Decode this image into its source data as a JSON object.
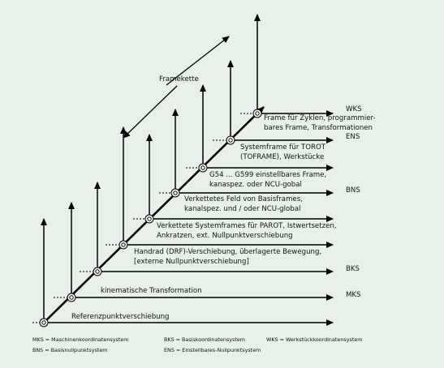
{
  "diagram": {
    "chain_label": "Framekette",
    "axis_labels": [
      "WKS",
      "ENS",
      "BNS",
      "BKS",
      "MKS"
    ],
    "frame_labels": [
      [
        "Referenzpunktverschiebung"
      ],
      [
        "kinematische Transformation"
      ],
      [
        "Handrad (DRF)-Verschiebung, überlagerte Bewegung,",
        "[externe Nullpunktverschiebung]"
      ],
      [
        "Verkettete Systemframes für PAROT, Istwertsetzen,",
        "Ankratzen, ext. Nullpunktverschiebung"
      ],
      [
        "Verkettetes Feld von Basisframes,",
        "kanalspez. und / oder NCU-global"
      ],
      [
        "G54 ... G599 einstellbares Frame,",
        "kanaspez. oder NCU-gobal"
      ],
      [
        "Systemframe für TOROT",
        "(TOFRAME), Werkstücke"
      ],
      [
        "Frame für Zyklen, programmier-",
        "bares Frame, Transformationen"
      ]
    ],
    "legend": [
      "MKS = Maschinenkoordinatensystem",
      "BKS = Basiskoordinatensystem",
      "WKS = Werkstückkoordinatensystem",
      "BNS = Basisnullpunktsystem",
      "ENS = Einstellbares-Nullpunktsystem"
    ]
  }
}
